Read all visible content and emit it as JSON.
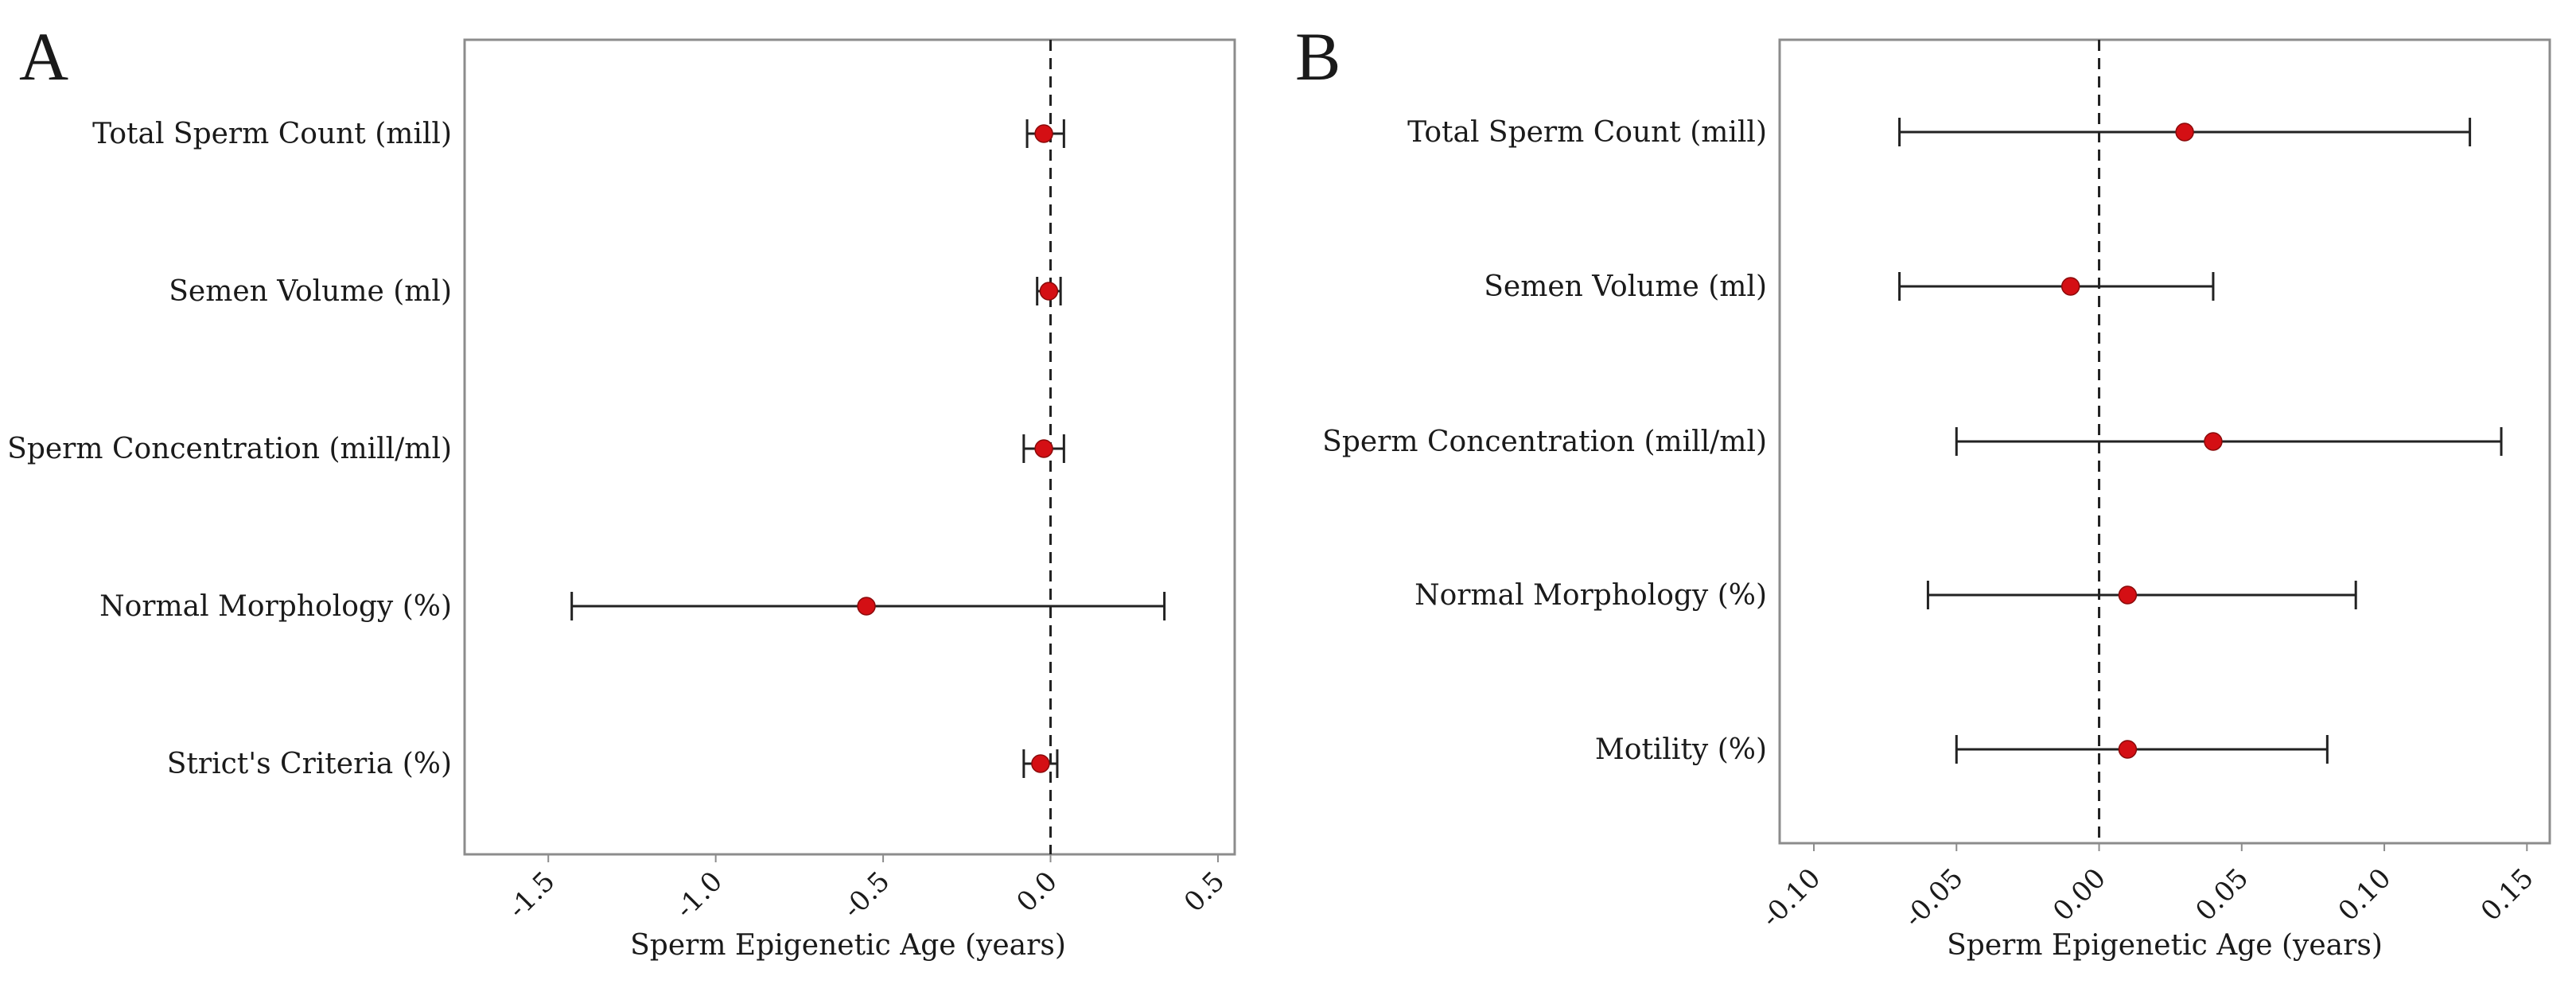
{
  "colors": {
    "point": "#d40f14",
    "whisker": "#222222",
    "frame": "#8c8c8c",
    "reference_line": "#222222"
  },
  "chart_data": [
    {
      "panel": "A",
      "type": "forest",
      "xlabel": "Sperm Epigenetic Age (years)",
      "xlim": [
        -1.75,
        0.55
      ],
      "xticks": [
        -1.5,
        -1.0,
        -0.5,
        0.0,
        0.5
      ],
      "xtick_labels": [
        "-1.5",
        "-1.0",
        "-0.5",
        "0.0",
        "0.5"
      ],
      "reference_line": 0.0,
      "grid": false,
      "rows": [
        {
          "label": "Total Sperm Count (mill)",
          "estimate": -0.02,
          "lower": -0.07,
          "upper": 0.04
        },
        {
          "label": "Semen Volume (ml)",
          "estimate": -0.005,
          "lower": -0.04,
          "upper": 0.03
        },
        {
          "label": "Sperm Concentration (mill/ml)",
          "estimate": -0.02,
          "lower": -0.08,
          "upper": 0.04
        },
        {
          "label": "Normal Morphology (%)",
          "estimate": -0.55,
          "lower": -1.43,
          "upper": 0.34
        },
        {
          "label": "Strict's Criteria (%)",
          "estimate": -0.03,
          "lower": -0.08,
          "upper": 0.02
        }
      ]
    },
    {
      "panel": "B",
      "type": "forest",
      "xlabel": "Sperm Epigenetic Age (years)",
      "xlim": [
        -0.112,
        0.158
      ],
      "xticks": [
        -0.1,
        -0.05,
        0.0,
        0.05,
        0.1,
        0.15
      ],
      "xtick_labels": [
        "-0.10",
        "-0.05",
        "0.00",
        "0.05",
        "0.10",
        "0.15"
      ],
      "reference_line": 0.0,
      "grid": false,
      "rows": [
        {
          "label": "Total Sperm Count (mill)",
          "estimate": 0.03,
          "lower": -0.07,
          "upper": 0.13
        },
        {
          "label": "Semen Volume (ml)",
          "estimate": -0.01,
          "lower": -0.07,
          "upper": 0.04
        },
        {
          "label": "Sperm Concentration (mill/ml)",
          "estimate": 0.04,
          "lower": -0.05,
          "upper": 0.141
        },
        {
          "label": "Normal Morphology (%)",
          "estimate": 0.01,
          "lower": -0.06,
          "upper": 0.09
        },
        {
          "label": "Motility (%)",
          "estimate": 0.01,
          "lower": -0.05,
          "upper": 0.08
        }
      ]
    }
  ]
}
